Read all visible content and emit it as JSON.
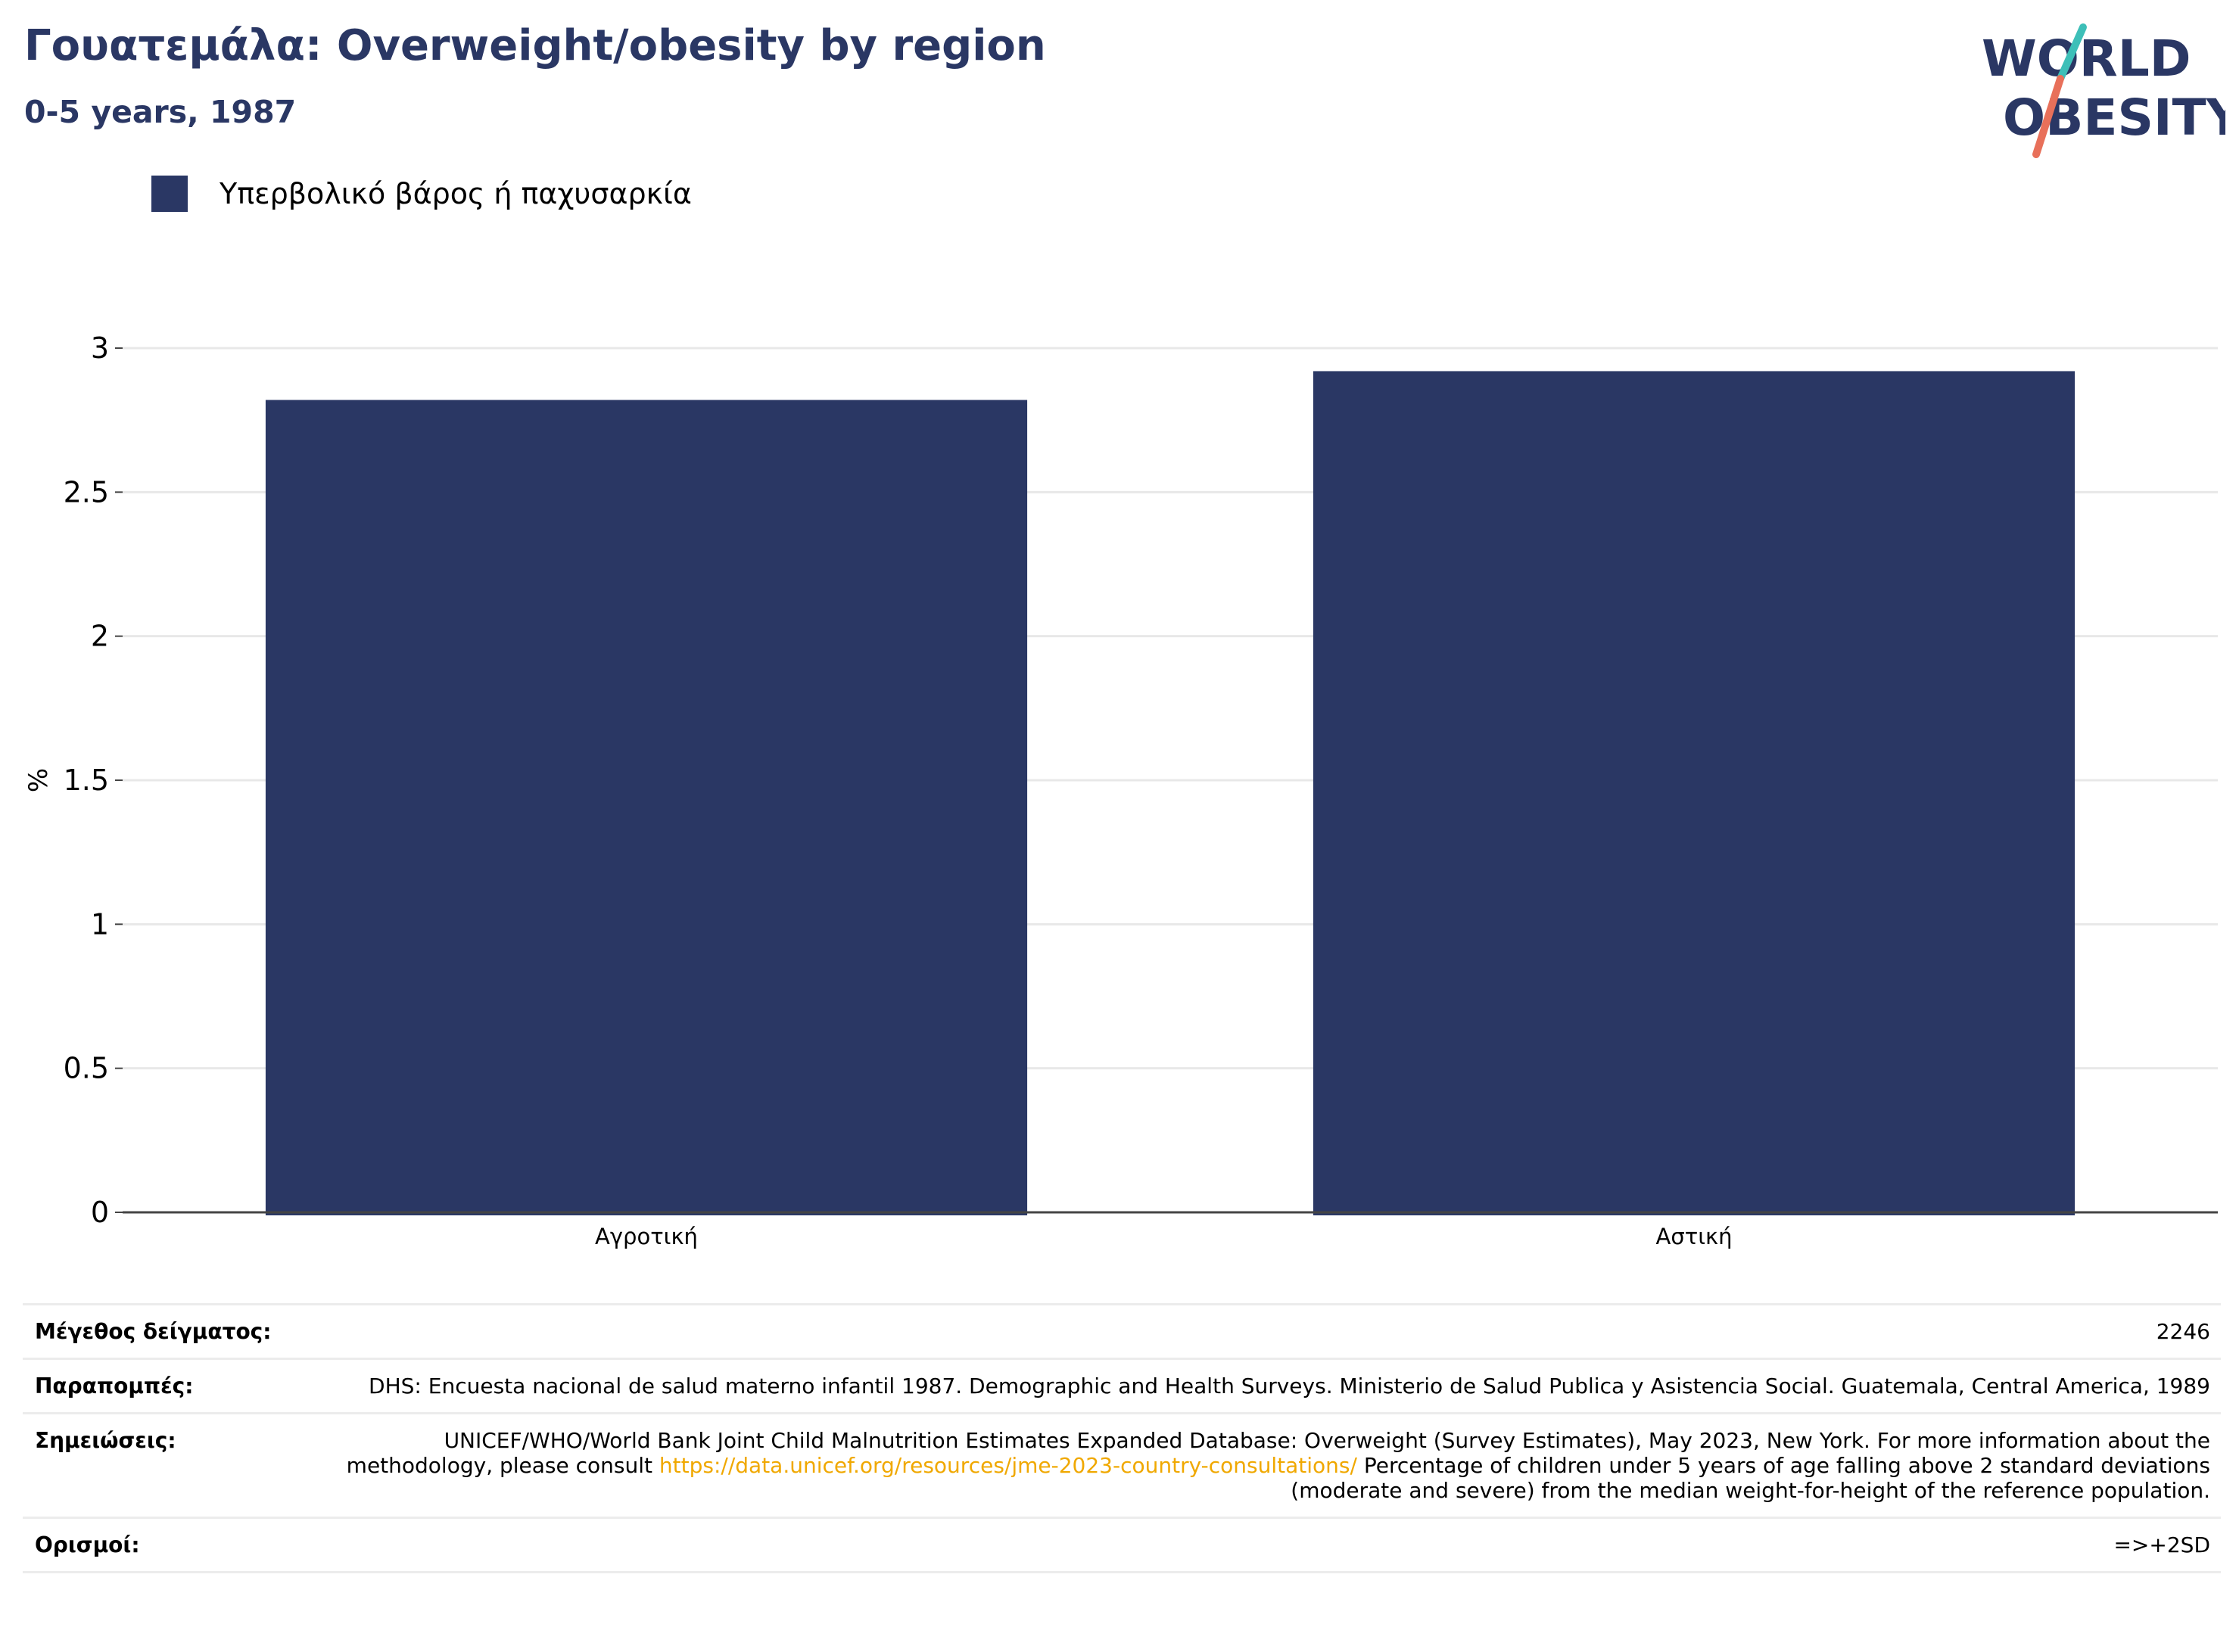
{
  "header": {
    "title": "Γουατεμάλα: Overweight/obesity by region",
    "subtitle": "0-5 years, 1987"
  },
  "logo": {
    "line1": "WORLD",
    "line2": "OBESITY",
    "icon": "world-obesity-logo",
    "colors": {
      "text": "#2a3764",
      "slash_top": "#3dbfb8",
      "slash_bottom": "#e8705a"
    }
  },
  "legend": {
    "label": "Υπερβολικό βάρος ή παχυσαρκία",
    "color": "#2a3764"
  },
  "chart_data": {
    "type": "bar",
    "categories": [
      "Αγροτική",
      "Αστική"
    ],
    "series": [
      {
        "name": "Υπερβολικό βάρος ή παχυσαρκία",
        "values": [
          2.82,
          2.92
        ],
        "color": "#2a3764"
      }
    ],
    "title": "Γουατεμάλα: Overweight/obesity by region",
    "subtitle": "0-5 years, 1987",
    "xlabel": "",
    "ylabel": "%",
    "ylim": [
      0,
      3
    ],
    "yticks": [
      "0",
      "0.5",
      "1",
      "1.5",
      "2",
      "2.5",
      "3"
    ],
    "grid": true,
    "legend_position": "top-left"
  },
  "info": {
    "sample_label": "Μέγεθος δείγματος:",
    "sample_value": "2246",
    "refs_label": "Παραπομπές:",
    "refs_value": "DHS: Encuesta nacional de salud materno infantil 1987. Demographic and Health Surveys. Ministerio de Salud Publica y Asistencia Social. Guatemala, Central America, 1989",
    "notes_label": "Σημειώσεις:",
    "notes_before": "UNICEF/WHO/World Bank Joint Child Malnutrition Estimates Expanded Database: Overweight (Survey Estimates), May 2023, New York. For more information about the methodology, please consult ",
    "notes_link": "https://data.unicef.org/resources/jme-2023-country-consultations/",
    "notes_after": " Percentage of children under 5 years of age falling above 2 standard deviations (moderate and severe) from the median weight-for-height of the reference population.",
    "defs_label": "Ορισμοί:",
    "defs_value": "=>+2SD",
    "link_color": "#f0a800"
  }
}
